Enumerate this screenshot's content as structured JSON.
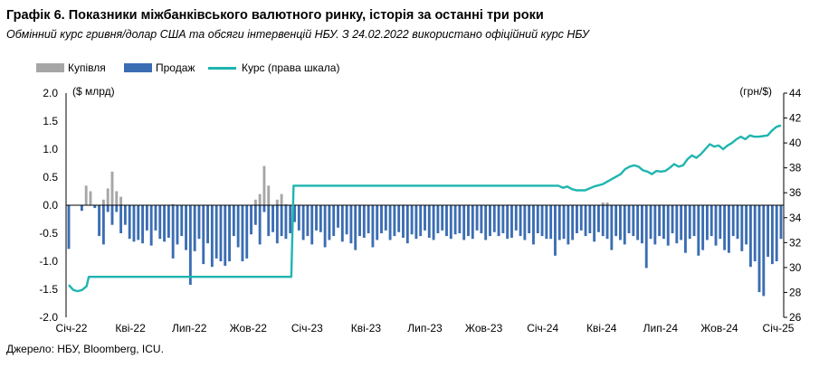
{
  "title": "Графік 6. Показники міжбанківського валютного ринку, історія за останні три роки",
  "subtitle": "Обмінний курс гривня/долар США та обсяги інтервенцій НБУ. З 24.02.2022 використано офіційний курс НБУ",
  "source": "Джерело: НБУ, Bloomberg, ICU.",
  "colors": {
    "buy": "#a6a6a6",
    "sell": "#3b6db3",
    "rate": "#1fb5b0"
  },
  "chart_data": {
    "type": "bar+line",
    "legend": [
      {
        "key": "buy",
        "label": "Купівля",
        "kind": "bar"
      },
      {
        "key": "sell",
        "label": "Продаж",
        "kind": "bar"
      },
      {
        "key": "rate",
        "label": "Курс (права шкала)",
        "kind": "line"
      }
    ],
    "y_left": {
      "label": "($ млрд)",
      "min": -2.0,
      "max": 2.0,
      "ticks": [
        "2.0",
        "1.5",
        "1.0",
        "0.5",
        "0.0",
        "-0.5",
        "-1.0",
        "-1.5",
        "-2.0"
      ]
    },
    "y_right": {
      "label": "(грн/$)",
      "min": 26,
      "max": 44,
      "ticks": [
        "44",
        "42",
        "40",
        "38",
        "36",
        "34",
        "32",
        "30",
        "28",
        "26"
      ]
    },
    "x_labels": [
      "Січ-22",
      "Кві-22",
      "Лип-22",
      "Жов-22",
      "Січ-23",
      "Кві-23",
      "Лип-23",
      "Жов-23",
      "Січ-24",
      "Кві-24",
      "Лип-24",
      "Жов-24",
      "Січ-25"
    ],
    "x_range": [
      0,
      160
    ],
    "buy": [
      0,
      0,
      0,
      0,
      0.35,
      0.25,
      0,
      0,
      0.1,
      0.3,
      0.6,
      0.25,
      0.15,
      0,
      0,
      0,
      0,
      0,
      0,
      0,
      0,
      0,
      0,
      0,
      0.02,
      0,
      0,
      0,
      0,
      0,
      0,
      0,
      0,
      0,
      0,
      0,
      0,
      0,
      0,
      0,
      0,
      0,
      0,
      0.1,
      0.2,
      0.7,
      0.35,
      0,
      0.1,
      0.2,
      0.02,
      0,
      0,
      0,
      0,
      0,
      0,
      0,
      0,
      0,
      0,
      0,
      0,
      0,
      0,
      0,
      0,
      0,
      0,
      0,
      0,
      0,
      0,
      0,
      0,
      0,
      0,
      0,
      0,
      0,
      0,
      0,
      0,
      0,
      0,
      0,
      0,
      0,
      0,
      0,
      0,
      0,
      0,
      0,
      0,
      0,
      0,
      0,
      0,
      0,
      0,
      0,
      0,
      0,
      0,
      0,
      0,
      0,
      0,
      0,
      0,
      0,
      0,
      0,
      0,
      0,
      0,
      0,
      0,
      0,
      0,
      0,
      0,
      0.05,
      0.05,
      0,
      0,
      0,
      0,
      0,
      0,
      0,
      0,
      0,
      0,
      0,
      0,
      0,
      0,
      0,
      0,
      0,
      0,
      0,
      0,
      0,
      0,
      0,
      0,
      0,
      0,
      0,
      0,
      0,
      0,
      0,
      0,
      0,
      0,
      0,
      0,
      0,
      0,
      0,
      0
    ],
    "sell": [
      -0.78,
      0,
      0,
      -0.1,
      0,
      0,
      -0.05,
      -0.55,
      -0.7,
      -0.12,
      -0.35,
      -0.12,
      -0.5,
      -0.35,
      -0.6,
      -0.65,
      -0.62,
      -0.68,
      -0.45,
      -0.72,
      -0.45,
      -0.6,
      -0.65,
      -0.58,
      -0.95,
      -0.7,
      -0.55,
      -0.8,
      -1.42,
      -0.82,
      -0.6,
      -1.05,
      -0.68,
      -1.1,
      -0.95,
      -1.0,
      -1.08,
      -1.0,
      -0.55,
      -0.75,
      -1.0,
      -0.95,
      -0.52,
      -0.35,
      -0.7,
      -0.12,
      -0.55,
      -0.48,
      -0.68,
      -0.55,
      -0.6,
      -0.5,
      -0.3,
      -0.45,
      -0.62,
      -0.55,
      -0.7,
      -0.45,
      -0.48,
      -0.75,
      -0.62,
      -0.55,
      -0.4,
      -0.65,
      -0.52,
      -0.68,
      -0.8,
      -0.55,
      -0.58,
      -0.5,
      -0.75,
      -0.62,
      -0.5,
      -0.45,
      -0.62,
      -0.55,
      -0.48,
      -0.58,
      -0.68,
      -0.52,
      -0.6,
      -0.55,
      -0.45,
      -0.58,
      -0.62,
      -0.5,
      -0.45,
      -0.55,
      -0.6,
      -0.52,
      -0.5,
      -0.62,
      -0.55,
      -0.6,
      -0.45,
      -0.5,
      -0.62,
      -0.55,
      -0.48,
      -0.55,
      -0.5,
      -0.6,
      -0.58,
      -0.45,
      -0.55,
      -0.62,
      -0.5,
      -0.7,
      -0.5,
      -0.55,
      -0.6,
      -0.6,
      -0.9,
      -0.62,
      -0.6,
      -0.7,
      -0.62,
      -0.5,
      -0.45,
      -0.55,
      -0.5,
      -0.65,
      -0.48,
      -0.55,
      -0.6,
      -0.8,
      -0.55,
      -0.62,
      -0.7,
      -0.5,
      -0.55,
      -0.62,
      -0.68,
      -1.12,
      -0.6,
      -0.7,
      -0.55,
      -0.6,
      -0.72,
      -0.5,
      -0.68,
      -0.62,
      -0.85,
      -0.6,
      -0.55,
      -0.9,
      -0.8,
      -0.62,
      -0.55,
      -0.72,
      -0.6,
      -0.8,
      -0.85,
      -0.55,
      -0.6,
      -0.82,
      -0.7,
      -1.1,
      -1.0,
      -1.55,
      -1.62,
      -0.92,
      -1.05,
      -1.0,
      -0.6
    ],
    "rate": [
      [
        0,
        28.6
      ],
      [
        1,
        28.2
      ],
      [
        2,
        28.1
      ],
      [
        3,
        28.2
      ],
      [
        4,
        28.5
      ],
      [
        4.5,
        29.25
      ],
      [
        25,
        29.25
      ],
      [
        50,
        29.25
      ],
      [
        50.5,
        36.57
      ],
      [
        70,
        36.57
      ],
      [
        100,
        36.57
      ],
      [
        110,
        36.57
      ],
      [
        111,
        36.4
      ],
      [
        112,
        36.5
      ],
      [
        113,
        36.3
      ],
      [
        114,
        36.2
      ],
      [
        116,
        36.2
      ],
      [
        118,
        36.5
      ],
      [
        120,
        36.7
      ],
      [
        122,
        37.1
      ],
      [
        124,
        37.5
      ],
      [
        125,
        37.9
      ],
      [
        126,
        38.1
      ],
      [
        127,
        38.2
      ],
      [
        128,
        38.1
      ],
      [
        129,
        37.8
      ],
      [
        130,
        37.7
      ],
      [
        131,
        37.5
      ],
      [
        132,
        37.75
      ],
      [
        133,
        37.7
      ],
      [
        134,
        37.75
      ],
      [
        135,
        38.0
      ],
      [
        136,
        38.3
      ],
      [
        137,
        38.1
      ],
      [
        138,
        38.2
      ],
      [
        139,
        38.7
      ],
      [
        140,
        39.0
      ],
      [
        141,
        38.8
      ],
      [
        142,
        39.1
      ],
      [
        143,
        39.5
      ],
      [
        144,
        39.9
      ],
      [
        145,
        39.7
      ],
      [
        146,
        39.8
      ],
      [
        147,
        39.5
      ],
      [
        148,
        39.8
      ],
      [
        149,
        40.0
      ],
      [
        150,
        40.3
      ],
      [
        151,
        40.5
      ],
      [
        152,
        40.3
      ],
      [
        153,
        40.6
      ],
      [
        154,
        40.5
      ],
      [
        155,
        40.5
      ],
      [
        156,
        40.55
      ],
      [
        157,
        40.6
      ],
      [
        158,
        41.0
      ],
      [
        159,
        41.3
      ],
      [
        160,
        41.4
      ]
    ]
  }
}
